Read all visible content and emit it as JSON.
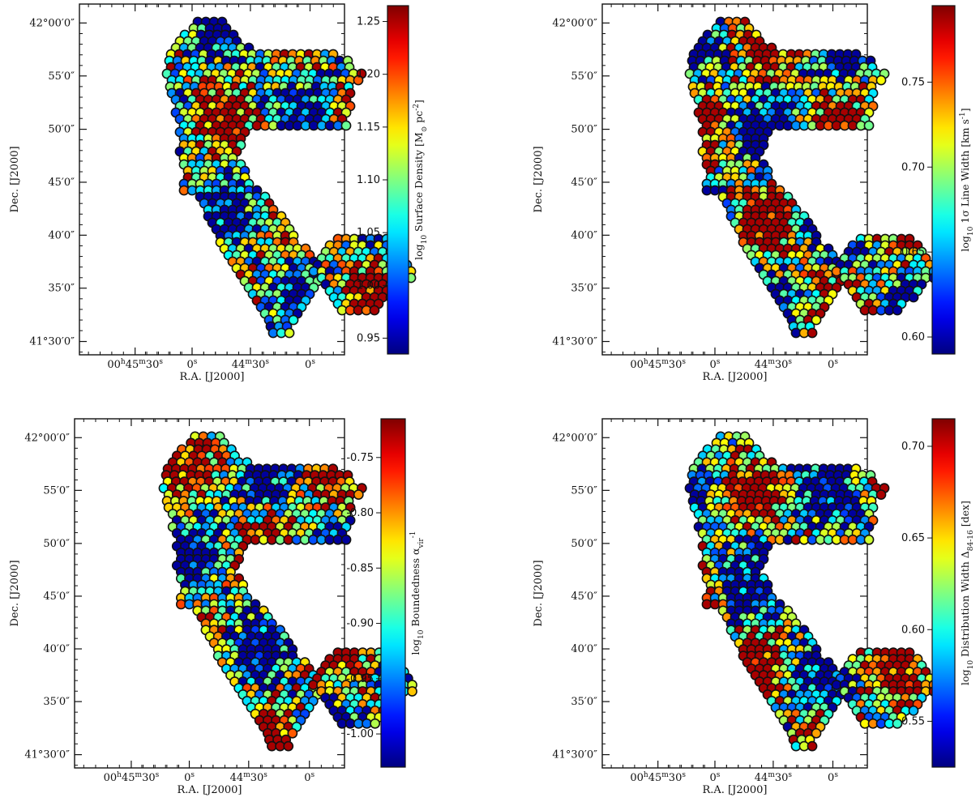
{
  "chart_data": [
    {
      "type": "heatmap",
      "title": "",
      "xlabel": "R.A. [J2000]",
      "ylabel": "Dec. [J2000]",
      "xticks": [
        "00h45m30s",
        "0s",
        "44m30s",
        "0s"
      ],
      "yticks": [
        "42°00′0″",
        "55′0″",
        "50′0″",
        "45′0″",
        "40′0″",
        "35′0″",
        "41°30′0″"
      ],
      "colorbar": {
        "label_main": "log",
        "label_sub": "10",
        "label_rest": " Surface Density [M",
        "label_unit_sup": "-2",
        "label_unit": "pc",
        "label_sun": "⊙",
        "ticks": [
          "0.95",
          "1.00",
          "1.05",
          "1.10",
          "1.15",
          "1.20",
          "1.25"
        ],
        "tick_values": [
          0.95,
          1.0,
          1.05,
          1.1,
          1.15,
          1.2,
          1.25
        ],
        "range": [
          0.935,
          1.265
        ]
      },
      "colormap": "jet",
      "seed": 11
    },
    {
      "type": "heatmap",
      "title": "",
      "xlabel": "R.A. [J2000]",
      "ylabel": "Dec. [J2000]",
      "xticks": [
        "00h45m30s",
        "0s",
        "44m30s",
        "0s"
      ],
      "yticks": [
        "42°00′0″",
        "55′0″",
        "50′0″",
        "45′0″",
        "40′0″",
        "35′0″",
        "41°30′0″"
      ],
      "colorbar": {
        "label_main": "log",
        "label_sub": "10",
        "label_rest": " 1σ Line Width [km s",
        "label_unit_sup": "-1",
        "label_unit": "",
        "label_sun": "",
        "ticks": [
          "0.60",
          "0.65",
          "0.70",
          "0.75"
        ],
        "tick_values": [
          0.6,
          0.65,
          0.7,
          0.75
        ],
        "range": [
          0.59,
          0.795
        ]
      },
      "colormap": "jet",
      "seed": 29
    },
    {
      "type": "heatmap",
      "title": "",
      "xlabel": "R.A. [J2000]",
      "ylabel": "Dec. [J2000]",
      "xticks": [
        "00h45m30s",
        "0s",
        "44m30s",
        "0s"
      ],
      "yticks": [
        "42°00′0″",
        "55′0″",
        "50′0″",
        "45′0″",
        "40′0″",
        "35′0″",
        "41°30′0″"
      ],
      "colorbar": {
        "label_main": "log",
        "label_sub": "10",
        "label_rest": " Boundedness α",
        "label_unit_sup": "-1",
        "label_unit": "vir",
        "label_sun": "",
        "ticks": [
          "-0.75",
          "-0.80",
          "-0.85",
          "-0.90",
          "-0.95",
          "-1.00"
        ],
        "tick_values": [
          -0.75,
          -0.8,
          -0.85,
          -0.9,
          -0.95,
          -1.0
        ],
        "range": [
          -1.03,
          -0.715
        ]
      },
      "colormap": "jet",
      "seed": 47
    },
    {
      "type": "heatmap",
      "title": "",
      "xlabel": "R.A. [J2000]",
      "ylabel": "Dec. [J2000]",
      "xticks": [
        "00h45m30s",
        "0s",
        "44m30s",
        "0s"
      ],
      "yticks": [
        "42°00′0″",
        "55′0″",
        "50′0″",
        "45′0″",
        "40′0″",
        "35′0″",
        "41°30′0″"
      ],
      "colorbar": {
        "label_main": "log",
        "label_sub": "10",
        "label_rest": " Distribution Width Δ",
        "label_unit_sup": "",
        "label_unit": "84-16",
        "label_sun": "",
        "label_tail": " [dex]",
        "ticks": [
          "0.55",
          "0.60",
          "0.65",
          "0.70"
        ],
        "tick_values": [
          0.55,
          0.6,
          0.65,
          0.7
        ],
        "range": [
          0.525,
          0.715
        ]
      },
      "colormap": "jet",
      "seed": 83
    }
  ]
}
